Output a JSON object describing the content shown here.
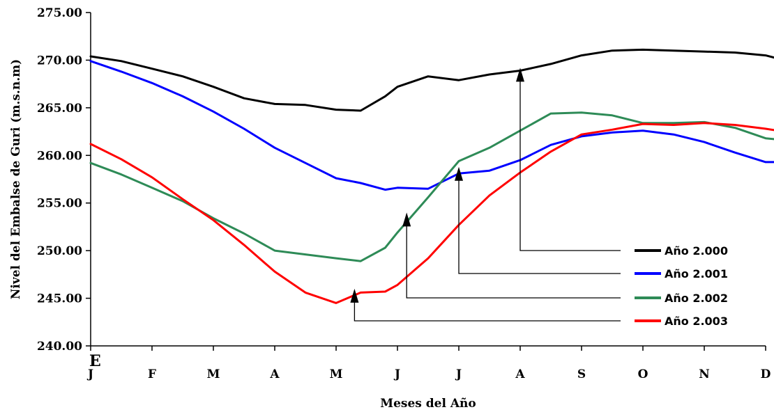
{
  "chart_data": {
    "type": "line",
    "title": "",
    "xlabel": "Meses del Año",
    "ylabel": "Nivel del Embalse de Guri (m.s.n.m)",
    "ylim": [
      240,
      275
    ],
    "y_ticks": [
      "240.00",
      "245.00",
      "250.00",
      "255.00",
      "260.00",
      "265.00",
      "270.00",
      "275.00"
    ],
    "y_tick_values": [
      240,
      245,
      250,
      255,
      260,
      265,
      270,
      275
    ],
    "categories": [
      "J",
      "F",
      "M",
      "A",
      "M",
      "J",
      "J",
      "A",
      "S",
      "O",
      "N",
      "D"
    ],
    "corner_mark": "E",
    "grid": false,
    "legend_position": "bottom-right",
    "x": [
      0,
      0.5,
      1,
      1.5,
      2,
      2.5,
      3,
      3.5,
      4,
      4.4,
      4.8,
      5,
      5.5,
      6,
      6.5,
      7,
      7.5,
      8,
      8.5,
      9,
      9.5,
      10,
      10.5,
      11,
      11.3
    ],
    "series": [
      {
        "name": "Año 2.000",
        "color": "#000000",
        "values": [
          270.4,
          269.9,
          269.1,
          268.3,
          267.2,
          266.0,
          265.4,
          265.3,
          264.8,
          264.7,
          266.2,
          267.2,
          268.3,
          267.9,
          268.5,
          268.9,
          269.6,
          270.5,
          271.0,
          271.1,
          271.0,
          270.9,
          270.8,
          270.5,
          270.0
        ]
      },
      {
        "name": "Año 2.001",
        "color": "#0000ff",
        "values": [
          269.9,
          268.8,
          267.6,
          266.2,
          264.6,
          262.8,
          260.8,
          259.2,
          257.6,
          257.1,
          256.4,
          256.6,
          256.5,
          258.1,
          258.4,
          259.5,
          261.1,
          262.0,
          262.4,
          262.6,
          262.2,
          261.4,
          260.3,
          259.3,
          259.3
        ]
      },
      {
        "name": "Año 2.002",
        "color": "#2e8b57",
        "values": [
          259.2,
          258.0,
          256.6,
          255.2,
          253.4,
          251.8,
          250.0,
          249.6,
          249.2,
          248.9,
          250.3,
          251.9,
          255.6,
          259.4,
          260.8,
          262.6,
          264.4,
          264.5,
          264.2,
          263.4,
          263.4,
          263.5,
          262.9,
          261.8,
          261.6
        ]
      },
      {
        "name": "Año 2.003",
        "color": "#ff0000",
        "values": [
          261.2,
          259.6,
          257.7,
          255.4,
          253.2,
          250.6,
          247.8,
          245.6,
          244.5,
          245.6,
          245.7,
          246.4,
          249.2,
          252.7,
          255.8,
          258.2,
          260.4,
          262.2,
          262.7,
          263.3,
          263.2,
          263.4,
          263.2,
          262.8,
          262.5
        ]
      }
    ],
    "annotations": [
      {
        "series": "Año 2.000",
        "x": 7,
        "y": 269.2
      },
      {
        "series": "Año 2.001",
        "x": 6,
        "y": 258.8
      },
      {
        "series": "Año 2.002",
        "x": 5.15,
        "y": 254.0
      },
      {
        "series": "Año 2.003",
        "x": 4.3,
        "y": 246.0
      }
    ]
  }
}
